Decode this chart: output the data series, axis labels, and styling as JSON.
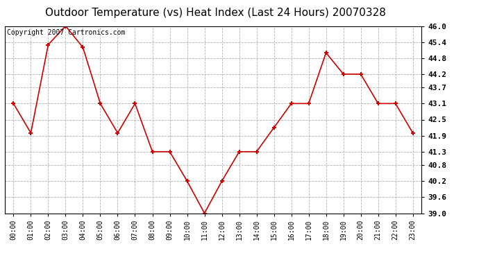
{
  "title": "Outdoor Temperature (vs) Heat Index (Last 24 Hours) 20070328",
  "copyright_text": "Copyright 2007 Cartronics.com",
  "hours": [
    "00:00",
    "01:00",
    "02:00",
    "03:00",
    "04:00",
    "05:00",
    "06:00",
    "07:00",
    "08:00",
    "09:00",
    "10:00",
    "11:00",
    "12:00",
    "13:00",
    "14:00",
    "15:00",
    "16:00",
    "17:00",
    "18:00",
    "19:00",
    "20:00",
    "21:00",
    "22:00",
    "23:00"
  ],
  "values": [
    43.1,
    42.0,
    45.3,
    46.0,
    45.2,
    43.1,
    42.0,
    43.1,
    41.3,
    41.3,
    40.2,
    39.0,
    40.2,
    41.3,
    41.3,
    42.2,
    43.1,
    43.1,
    45.0,
    44.2,
    44.2,
    43.1,
    43.1,
    42.0
  ],
  "ylim": [
    39.0,
    46.0
  ],
  "yticks": [
    39.0,
    39.6,
    40.2,
    40.8,
    41.3,
    41.9,
    42.5,
    43.1,
    43.7,
    44.2,
    44.8,
    45.4,
    46.0
  ],
  "line_color": "#cc0000",
  "marker": "+",
  "marker_size": 5,
  "marker_linewidth": 1.5,
  "line_width": 1.2,
  "bg_color": "#ffffff",
  "grid_color": "#aaaaaa",
  "grid_linestyle": "--",
  "title_fontsize": 11,
  "tick_fontsize": 7,
  "copyright_fontsize": 7
}
